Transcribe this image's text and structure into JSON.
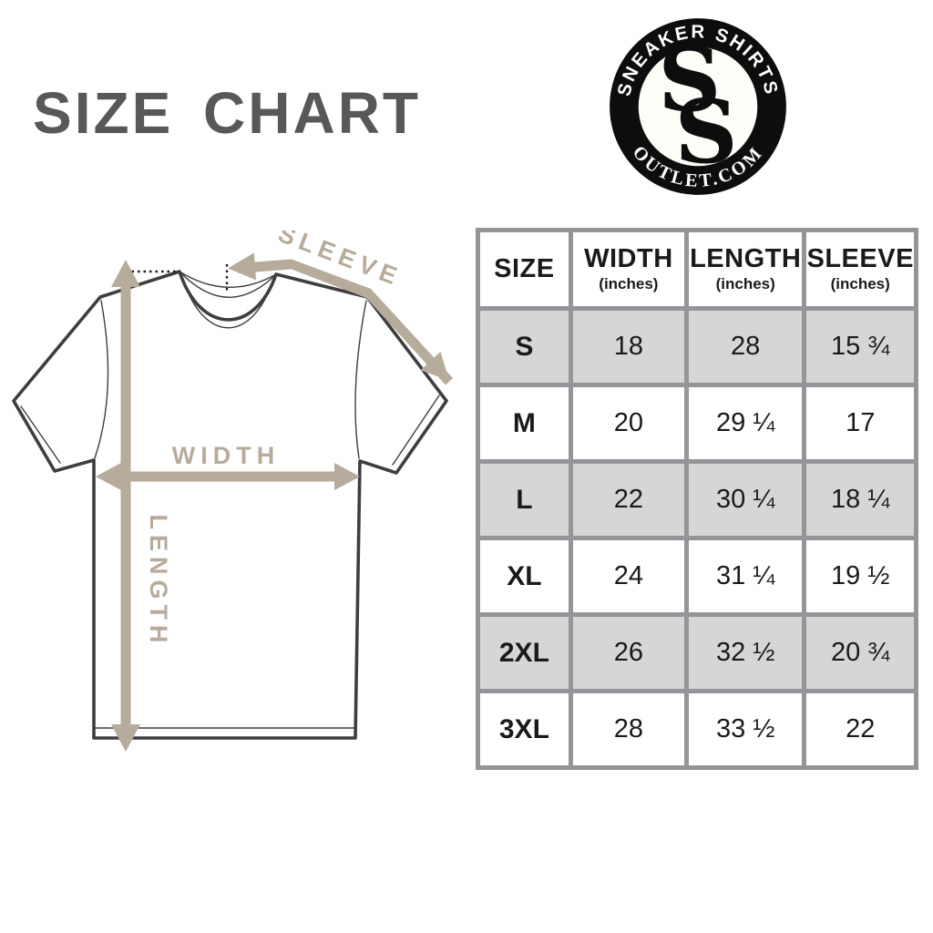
{
  "title": "SIZE CHART",
  "logo": {
    "top_text": "SNEAKER SHIRTS",
    "bottom_text": "OUTLET.COM",
    "monogram": [
      "S",
      "S"
    ],
    "ring_color": "#0d0d0d",
    "text_color": "#ffffff"
  },
  "diagram": {
    "labels": {
      "sleeve": "SLEEVE",
      "width": "WIDTH",
      "length": "LENGTH"
    },
    "colors": {
      "arrow": "#b7ab9b",
      "outline": "#3e3e40"
    }
  },
  "table": {
    "headers": [
      {
        "label": "SIZE",
        "sub": ""
      },
      {
        "label": "WIDTH",
        "sub": "(inches)"
      },
      {
        "label": "LENGTH",
        "sub": "(inches)"
      },
      {
        "label": "SLEEVE",
        "sub": "(inches)"
      }
    ],
    "rows": [
      {
        "size": "S",
        "width": "18",
        "length": "28",
        "sleeve": "15 ¾",
        "shaded": true
      },
      {
        "size": "M",
        "width": "20",
        "length": "29 ¼",
        "sleeve": "17",
        "shaded": false
      },
      {
        "size": "L",
        "width": "22",
        "length": "30 ¼",
        "sleeve": "18 ¼",
        "shaded": true
      },
      {
        "size": "XL",
        "width": "24",
        "length": "31 ¼",
        "sleeve": "19 ½",
        "shaded": false
      },
      {
        "size": "2XL",
        "width": "26",
        "length": "32 ½",
        "sleeve": "20 ¾",
        "shaded": true
      },
      {
        "size": "3XL",
        "width": "28",
        "length": "33 ½",
        "sleeve": "22",
        "shaded": false
      }
    ],
    "colors": {
      "grid": "#939598",
      "shaded_row": "#d6d6d6",
      "text": "#1a1a1a"
    }
  }
}
